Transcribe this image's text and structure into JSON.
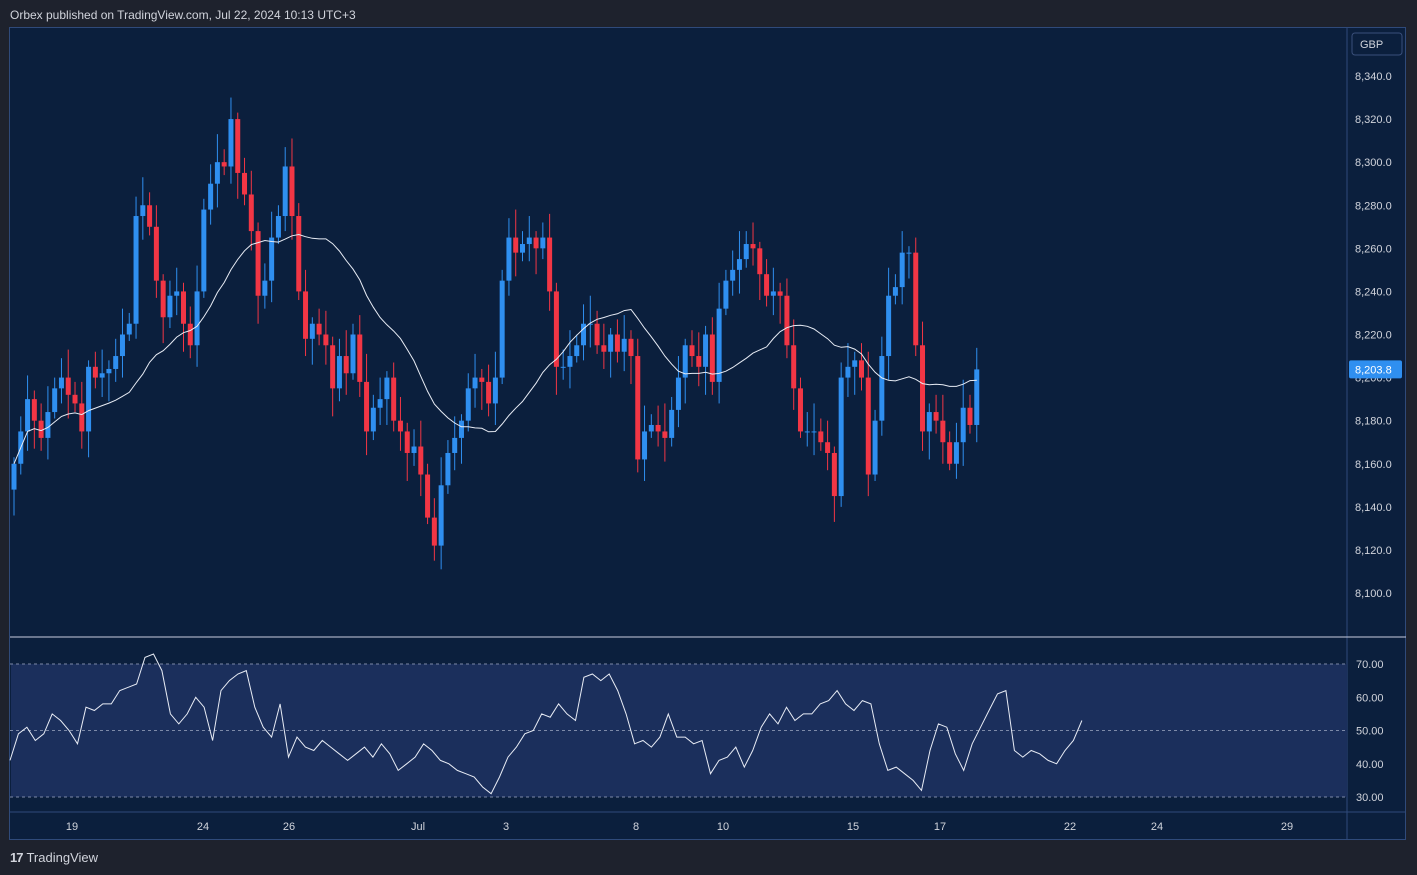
{
  "header": {
    "text": "Orbex published on TradingView.com, Jul 22, 2024 10:13 UTC+3"
  },
  "footer": {
    "logo_mark": "17",
    "brand": "TradingView"
  },
  "colors": {
    "up": "#2f8ff0",
    "down": "#f23645",
    "ma": "#e8ecf5",
    "rsi_line": "#e8ecf5",
    "rsi_band": "#1b2f5c",
    "pane_bg": "#0b1f3d",
    "grid_text": "#d1d4dc",
    "last_price_bg": "#2f8ff0"
  },
  "chart_data": [
    {
      "type": "candlestick",
      "title": "",
      "currency": "GBP",
      "ylim": [
        8080,
        8350
      ],
      "y_ticks": [
        "8,100.0",
        "8,120.0",
        "8,140.0",
        "8,160.0",
        "8,180.0",
        "8,200.0",
        "8,220.0",
        "8,240.0",
        "8,260.0",
        "8,280.0",
        "8,300.0",
        "8,320.0",
        "8,340.0"
      ],
      "x_ticks": [
        "19",
        "24",
        "26",
        "Jul",
        "3",
        "8",
        "10",
        "15",
        "17",
        "22",
        "24",
        "29"
      ],
      "last_price": "8,203.8",
      "close": [
        8160,
        8175,
        8190,
        8180,
        8172,
        8184,
        8195,
        8200,
        8192,
        8188,
        8175,
        8205,
        8200,
        8202,
        8204,
        8210,
        8220,
        8225,
        8275,
        8280,
        8270,
        8245,
        8228,
        8238,
        8240,
        8225,
        8215,
        8240,
        8278,
        8290,
        8300,
        8298,
        8320,
        8295,
        8285,
        8268,
        8238,
        8245,
        8265,
        8275,
        8298,
        8275,
        8240,
        8218,
        8225,
        8220,
        8215,
        8195,
        8210,
        8202,
        8220,
        8198,
        8175,
        8186,
        8190,
        8200,
        8180,
        8175,
        8165,
        8168,
        8155,
        8135,
        8122,
        8150,
        8165,
        8172,
        8180,
        8195,
        8200,
        8198,
        8188,
        8200,
        8245,
        8265,
        8258,
        8262,
        8265,
        8260,
        8265,
        8240,
        8205,
        8205,
        8210,
        8215,
        8225,
        8225,
        8215,
        8212,
        8220,
        8212,
        8218,
        8210,
        8162,
        8175,
        8178,
        8175,
        8172,
        8185,
        8200,
        8215,
        8210,
        8205,
        8220,
        8198,
        8232,
        8245,
        8250,
        8255,
        8262,
        8260,
        8248,
        8238,
        8240,
        8238,
        8215,
        8195,
        8175,
        8175,
        8175,
        8170,
        8165,
        8145,
        8200,
        8205,
        8208,
        8200,
        8155,
        8180,
        8210,
        8238,
        8242,
        8258,
        8258,
        8215,
        8175,
        8184,
        8180,
        8170,
        8160,
        8170,
        8186,
        8178,
        8203.8
      ],
      "ma_period": "20",
      "x_dates_start_label": "19"
    },
    {
      "type": "line",
      "title": "",
      "ylim": [
        27,
        75
      ],
      "y_ticks": [
        "30.00",
        "40.00",
        "50.00",
        "60.00",
        "70.00"
      ],
      "bands": [
        70,
        50,
        30
      ],
      "values": [
        41,
        49,
        51,
        47,
        49,
        55,
        53,
        50,
        46,
        57,
        56,
        58,
        58,
        62,
        63,
        64,
        72,
        73,
        68,
        55,
        52,
        55,
        60,
        57,
        47,
        62,
        65,
        67,
        68,
        57,
        51,
        48,
        58,
        42,
        48,
        45,
        44,
        47,
        45,
        43,
        41,
        43,
        45,
        42,
        46,
        43,
        38,
        40,
        42,
        46,
        44,
        41,
        40,
        38,
        37,
        36,
        33,
        31,
        36,
        42,
        45,
        49,
        50,
        55,
        54,
        58,
        55,
        53,
        66,
        67,
        65,
        67,
        62,
        55,
        46,
        47,
        45,
        48,
        55,
        48,
        48,
        46,
        47,
        37,
        41,
        42,
        45,
        39,
        44,
        51,
        55,
        52,
        57,
        53,
        55,
        55,
        58,
        59,
        62,
        58,
        56,
        59,
        58,
        46,
        38,
        39,
        37,
        35,
        32,
        44,
        52,
        51,
        43,
        38,
        46,
        51,
        56,
        61,
        62,
        44,
        42,
        44,
        43,
        41,
        40,
        44,
        47,
        53
      ]
    }
  ]
}
